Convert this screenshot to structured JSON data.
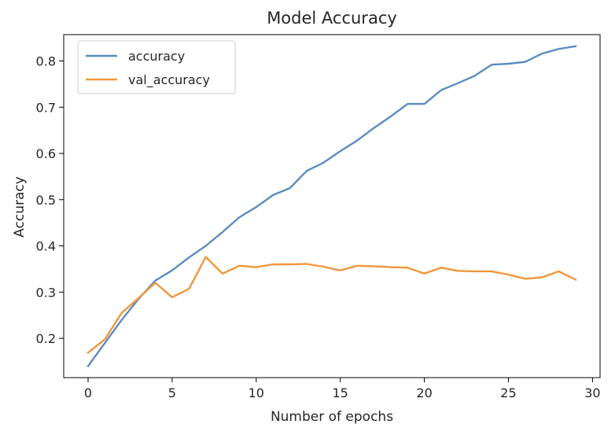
{
  "chart_data": {
    "type": "line",
    "title": "Model Accuracy",
    "xlabel": "Number of epochs",
    "ylabel": "Accuracy",
    "xlim": [
      -1.45,
      30.45
    ],
    "ylim": [
      0.115,
      0.857
    ],
    "xticks": [
      0,
      5,
      10,
      15,
      20,
      25,
      30
    ],
    "yticks": [
      0.2,
      0.3,
      0.4,
      0.5,
      0.6,
      0.7,
      0.8
    ],
    "grid": false,
    "legend_position": "upper left",
    "x": [
      0,
      1,
      2,
      3,
      4,
      5,
      6,
      7,
      8,
      9,
      10,
      11,
      12,
      13,
      14,
      15,
      16,
      17,
      18,
      19,
      20,
      21,
      22,
      23,
      24,
      25,
      26,
      27,
      28,
      29
    ],
    "series": [
      {
        "name": "accuracy",
        "color": "#5b8cc1",
        "values": [
          0.14,
          0.19,
          0.24,
          0.285,
          0.325,
          0.347,
          0.375,
          0.4,
          0.43,
          0.462,
          0.484,
          0.51,
          0.525,
          0.562,
          0.58,
          0.605,
          0.628,
          0.655,
          0.68,
          0.707,
          0.707,
          0.737,
          0.752,
          0.768,
          0.792,
          0.794,
          0.798,
          0.816,
          0.826,
          0.832
        ]
      },
      {
        "name": "val_accuracy",
        "color": "#f0963c",
        "values": [
          0.169,
          0.198,
          0.255,
          0.287,
          0.32,
          0.289,
          0.307,
          0.376,
          0.34,
          0.357,
          0.354,
          0.36,
          0.36,
          0.361,
          0.355,
          0.347,
          0.357,
          0.356,
          0.354,
          0.353,
          0.34,
          0.353,
          0.346,
          0.345,
          0.345,
          0.338,
          0.329,
          0.332,
          0.345,
          0.327
        ]
      }
    ]
  }
}
